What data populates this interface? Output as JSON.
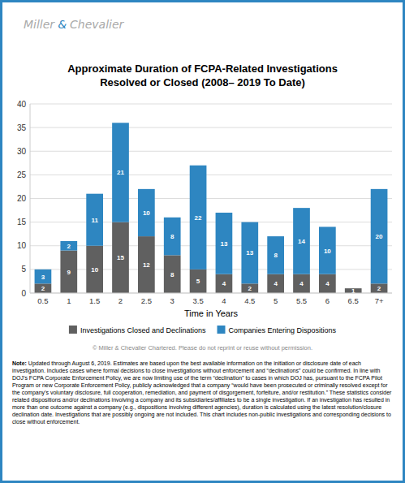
{
  "chart_data": {
    "type": "bar",
    "title": "Approximate Duration of FCPA-Related Investigations",
    "subtitle": "Resolved or Closed (2008– 2019 To Date)",
    "xlabel": "Time in Years",
    "categories": [
      "0.5",
      "1",
      "1.5",
      "2",
      "2.5",
      "3",
      "3.5",
      "4",
      "4.5",
      "5",
      "5.5",
      "6",
      "6.5",
      "7+"
    ],
    "series": [
      {
        "name": "Investigations Closed and Declinations",
        "color": "#606060",
        "values": [
          2,
          9,
          10,
          15,
          12,
          8,
          5,
          4,
          2,
          4,
          4,
          4,
          1,
          2
        ]
      },
      {
        "name": "Companies Entering Dispositions",
        "color": "#2e86c1",
        "values": [
          3,
          2,
          11,
          21,
          10,
          8,
          22,
          13,
          13,
          8,
          14,
          10,
          0,
          20
        ]
      }
    ],
    "stacked": true,
    "data_labels": true,
    "grid": true,
    "legend": "bottom",
    "ylim": [
      0,
      40
    ],
    "yticks": [
      0,
      5,
      10,
      15,
      20,
      25,
      30,
      35,
      40
    ],
    "annotations": [
      "Miller",
      "&",
      "Chevalier",
      "© Miller & Chevalier Chartered. Please do not reprint or reuse without permission.",
      "Note:",
      " Updated through August 6, 2019. Estimates are based upon the best available information on the initiation or disclosure date of each investigation. Includes cases where formal decisions to close investigations without enforcement and “declinations” could be confirmed. In line with DOJ’s FCPA Corporate Enforcement Policy, we are now limiting use of the term “declination” to cases in which DOJ has, pursuant to the FCPA Pilot Program or new Corporate Enforcement Policy, publicly acknowledged that a company “would have been prosecuted or criminally resolved except for the company’s voluntary disclosure, full cooperation, remediation, and payment of disgorgement, forfeiture, and/or restitution.” These statistics consider related dispositions and/or declinations involving a company and its subsidiaries/affiliates to be a single investigation. If an investigation has resulted in more than one outcome against a company (e.g., dispositions involving different agencies), duration is calculated using the latest resolution/closure declination date.  Investigations that are possibly ongoing are not included. This chart includes non-public investigations and corresponding decisions to close without enforcement."
    ]
  }
}
